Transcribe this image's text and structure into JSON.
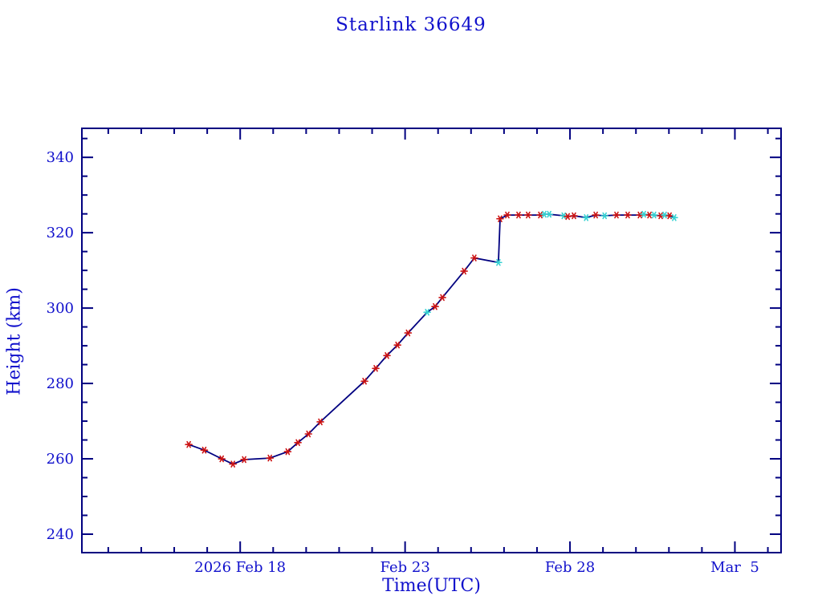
{
  "page": {
    "background_color": "#ffffff",
    "text_color": "#1010cc",
    "frame_color": "#000080"
  },
  "chart_data": {
    "type": "line",
    "title": "Starlink 36649",
    "xlabel": "Time(UTC)",
    "ylabel": "Height (km)",
    "x_unit": "days since 2026 Feb 18 00:00 UTC",
    "xlim": [
      -4.8,
      16.4
    ],
    "ylim": [
      235.1,
      347.7
    ],
    "grid": false,
    "legend": null,
    "x_major_ticks": [
      {
        "x": 0,
        "label": "2026 Feb 18"
      },
      {
        "x": 5,
        "label": "Feb 23"
      },
      {
        "x": 10,
        "label": "Feb 28"
      },
      {
        "x": 15,
        "label": "Mar  5"
      }
    ],
    "x_minor_step_days": 1,
    "y_major_ticks": [
      240,
      260,
      280,
      300,
      320,
      340
    ],
    "y_minor_step": 5,
    "line_color": "#000080",
    "marker_style": "asterisk",
    "marker_colors": {
      "red": "#cc1212",
      "cyan": "#35d2d2"
    },
    "series": [
      {
        "name": "orbit-height",
        "points": [
          [
            -1.56,
            263.8,
            "red"
          ],
          [
            -1.09,
            262.3,
            "red"
          ],
          [
            -0.56,
            260.0,
            "red"
          ],
          [
            -0.22,
            258.6,
            "red"
          ],
          [
            0.12,
            259.8,
            "red"
          ],
          [
            0.9,
            260.2,
            "red"
          ],
          [
            1.44,
            261.9,
            "red"
          ],
          [
            1.75,
            264.3,
            "red"
          ],
          [
            2.07,
            266.6,
            "red"
          ],
          [
            2.43,
            269.8,
            "red"
          ],
          [
            3.77,
            280.6,
            "red"
          ],
          [
            4.11,
            284.0,
            "red"
          ],
          [
            4.45,
            287.4,
            "red"
          ],
          [
            4.77,
            290.2,
            "red"
          ],
          [
            5.09,
            293.4,
            "red"
          ],
          [
            5.67,
            298.9,
            "cyan"
          ],
          [
            5.91,
            300.4,
            "red"
          ],
          [
            6.13,
            302.8,
            "red"
          ],
          [
            6.79,
            309.8,
            "red"
          ],
          [
            7.1,
            313.3,
            "red"
          ],
          [
            7.83,
            312.1,
            "cyan"
          ],
          [
            7.88,
            323.7,
            "red"
          ],
          [
            8.1,
            324.7,
            "red"
          ],
          [
            8.44,
            324.7,
            "red"
          ],
          [
            8.73,
            324.7,
            "red"
          ],
          [
            9.1,
            324.7,
            "red"
          ],
          [
            9.22,
            324.9,
            "cyan"
          ],
          [
            9.37,
            324.9,
            "cyan"
          ],
          [
            9.81,
            324.5,
            "cyan"
          ],
          [
            9.93,
            324.3,
            "red"
          ],
          [
            10.12,
            324.5,
            "red"
          ],
          [
            10.49,
            324.0,
            "cyan"
          ],
          [
            10.78,
            324.7,
            "red"
          ],
          [
            11.05,
            324.5,
            "cyan"
          ],
          [
            11.41,
            324.7,
            "red"
          ],
          [
            11.75,
            324.7,
            "red"
          ],
          [
            12.12,
            324.7,
            "red"
          ],
          [
            12.24,
            324.9,
            "cyan"
          ],
          [
            12.41,
            324.7,
            "red"
          ],
          [
            12.55,
            324.7,
            "cyan"
          ],
          [
            12.75,
            324.5,
            "red"
          ],
          [
            12.87,
            324.7,
            "cyan"
          ],
          [
            13.02,
            324.5,
            "red"
          ],
          [
            13.16,
            324.0,
            "cyan"
          ]
        ]
      }
    ]
  }
}
